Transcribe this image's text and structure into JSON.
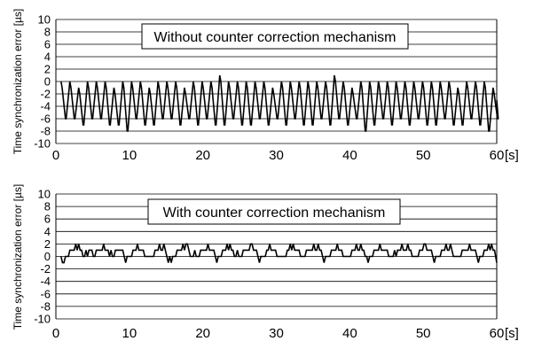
{
  "chart_data": [
    {
      "type": "line",
      "annotation": "Without counter correction mechanism",
      "xlabel": "",
      "x_unit": "[s]",
      "ylabel": "Time synchronization error [µs]",
      "xlim": [
        0,
        60
      ],
      "ylim": [
        -10,
        10
      ],
      "x_ticks": [
        0,
        10,
        20,
        30,
        40,
        50,
        60
      ],
      "y_ticks": [
        10,
        8,
        6,
        4,
        2,
        0,
        -2,
        -4,
        -6,
        -8,
        -10
      ],
      "grid": "horizontal",
      "series": [
        {
          "sawtooth_period_s": 1.2,
          "sawtooth_start_s": 0.7,
          "x": [
            0.7,
            1.9,
            3.1,
            4.3,
            5.5,
            6.7,
            7.9,
            9.1,
            10.3,
            11.5,
            12.7,
            13.9,
            15.1,
            16.3,
            17.5,
            18.7,
            19.9,
            21.1,
            22.3,
            23.5,
            24.7,
            25.9,
            27.1,
            28.3,
            29.5,
            30.7,
            31.9,
            33.1,
            34.3,
            35.5,
            36.7,
            37.9,
            39.1,
            40.3,
            41.5,
            42.7,
            43.9,
            45.1,
            46.3,
            47.5,
            48.7,
            49.9,
            51.1,
            52.3,
            53.5,
            54.7,
            55.9,
            57.1,
            58.3,
            59.5
          ],
          "peak_values": [
            0,
            0,
            -1,
            0,
            0,
            0,
            -1,
            0,
            0,
            0,
            -1,
            0,
            0,
            0,
            -1,
            0,
            0,
            0,
            1,
            0,
            0,
            0,
            0,
            0,
            -1,
            0,
            0,
            0,
            0,
            0,
            0,
            1,
            0,
            -1,
            0,
            0,
            0,
            0,
            0,
            0,
            0,
            0,
            0,
            0,
            0,
            -1,
            0,
            0,
            0,
            -1
          ],
          "trough_values": [
            -6,
            -6,
            -7,
            -6,
            -6,
            -7,
            -7,
            -8,
            -6,
            -7,
            -7,
            -6,
            -6,
            -7,
            -6,
            -7,
            -6,
            -7,
            -7,
            -6,
            -7,
            -7,
            -6,
            -7,
            -6,
            -7,
            -6,
            -7,
            -7,
            -6,
            -7,
            -6,
            -7,
            -6,
            -8,
            -7,
            -6,
            -7,
            -6,
            -7,
            -6,
            -7,
            -7,
            -6,
            -7,
            -7,
            -6,
            -7,
            -8,
            -6
          ]
        }
      ]
    },
    {
      "type": "line",
      "annotation": "With counter correction mechanism",
      "xlabel": "",
      "x_unit": "[s]",
      "ylabel": "Time synchronization error [µs]",
      "xlim": [
        0,
        60
      ],
      "ylim": [
        -10,
        10
      ],
      "x_ticks": [
        0,
        10,
        20,
        30,
        40,
        50,
        60
      ],
      "y_ticks": [
        10,
        8,
        6,
        4,
        2,
        0,
        -2,
        -4,
        -6,
        -8,
        -10
      ],
      "grid": "horizontal",
      "series": [
        {
          "x_start": 0.7,
          "x_step": 0.2,
          "values": [
            0,
            -1,
            -1,
            0,
            0,
            0,
            1,
            1,
            1,
            1,
            2,
            1,
            2,
            1,
            1,
            0,
            0,
            1,
            0,
            1,
            1,
            1,
            0,
            0,
            1,
            1,
            1,
            1,
            1,
            2,
            1,
            1,
            1,
            0,
            1,
            0,
            0,
            1,
            1,
            1,
            1,
            1,
            1,
            0,
            -1,
            0,
            0,
            0,
            0,
            1,
            1,
            1,
            2,
            1,
            1,
            1,
            1,
            0,
            0,
            0,
            0,
            0,
            0,
            0,
            1,
            1,
            1,
            2,
            1,
            1,
            2,
            1,
            0,
            -1,
            0,
            -1,
            0,
            0,
            0,
            1,
            1,
            1,
            1,
            2,
            1,
            2,
            2,
            1,
            0,
            0,
            0,
            1,
            0,
            0,
            0,
            1,
            1,
            1,
            1,
            1,
            2,
            1,
            1,
            1,
            1,
            0,
            -1,
            0,
            0,
            0,
            1,
            1,
            1,
            2,
            1,
            2,
            1,
            1,
            0,
            0,
            1,
            0,
            0,
            0,
            1,
            1,
            1,
            1,
            1,
            2,
            2,
            1,
            1,
            1,
            0,
            -1,
            0,
            0,
            0,
            0,
            1,
            1,
            2,
            1,
            1,
            1,
            1,
            0,
            0,
            0,
            0,
            0,
            0,
            0,
            1,
            1,
            2,
            1,
            2,
            1,
            1,
            1,
            1,
            0,
            0,
            0,
            0,
            1,
            1,
            1,
            1,
            1,
            2,
            1,
            1,
            2,
            1,
            1,
            0,
            -1,
            0,
            0,
            0,
            0,
            1,
            1,
            1,
            1,
            2,
            1,
            1,
            1,
            0,
            0,
            0,
            0,
            0,
            0,
            1,
            1,
            1,
            2,
            1,
            1,
            2,
            1,
            1,
            0,
            0,
            -1,
            0,
            0,
            0,
            1,
            1,
            1,
            1,
            2,
            1,
            1,
            1,
            1,
            1,
            0,
            0,
            0,
            0,
            1,
            0,
            1,
            1,
            1,
            2,
            1,
            1,
            1,
            2,
            1,
            1,
            0,
            0,
            0,
            0,
            0,
            1,
            1,
            1,
            2,
            2,
            1,
            1,
            1,
            1,
            0,
            -1,
            0,
            0,
            0,
            0,
            1,
            1,
            1,
            2,
            1,
            1,
            2,
            1,
            0,
            0,
            0,
            0,
            0,
            0,
            1,
            1,
            1,
            1,
            1,
            2,
            1,
            1,
            1,
            1,
            0,
            -1,
            0,
            0,
            0,
            1,
            1,
            1,
            2,
            1,
            2,
            1,
            1
          ]
        }
      ]
    }
  ]
}
